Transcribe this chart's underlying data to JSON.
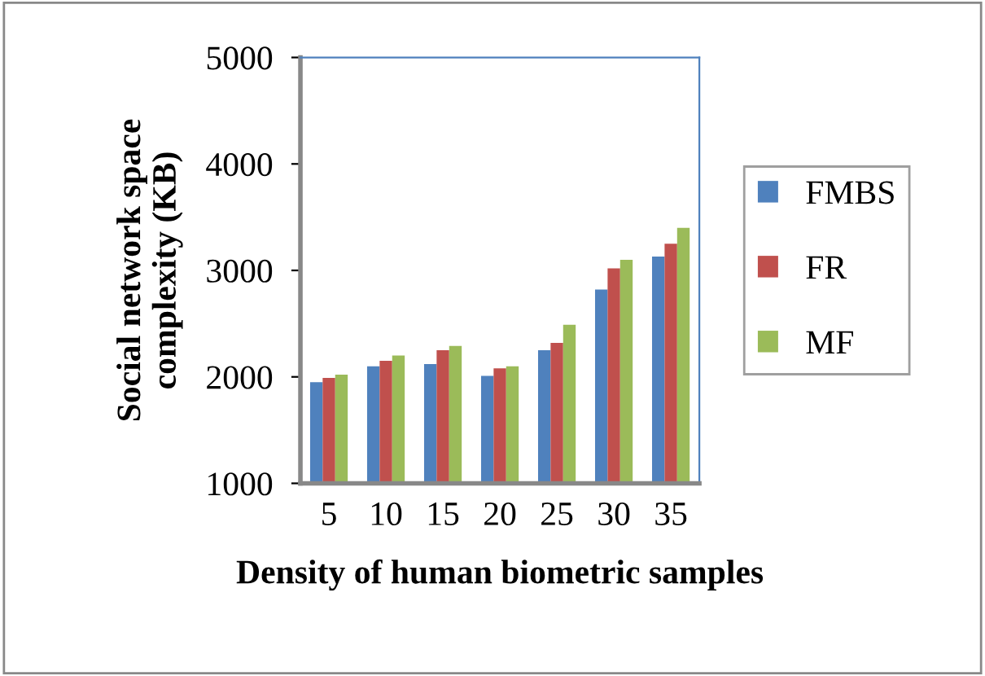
{
  "chart_data": {
    "type": "bar",
    "xlabel": "Density of human biometric samples",
    "ylabel": "Social network space\ncomplexity (KB)",
    "categories": [
      "5",
      "10",
      "15",
      "20",
      "25",
      "30",
      "35"
    ],
    "series": [
      {
        "name": "FMBS",
        "color": "#4f81bd",
        "values": [
          1950,
          2100,
          2120,
          2010,
          2250,
          2820,
          3130
        ]
      },
      {
        "name": "FR",
        "color": "#c0504d",
        "values": [
          1990,
          2150,
          2250,
          2080,
          2320,
          3020,
          3250
        ]
      },
      {
        "name": "MF",
        "color": "#9bbb59",
        "values": [
          2020,
          2200,
          2290,
          2100,
          2490,
          3100,
          3400
        ]
      }
    ],
    "ylim": [
      1000,
      5000
    ],
    "yticks": [
      1000,
      2000,
      3000,
      4000,
      5000
    ],
    "grid": false,
    "legend": "right"
  }
}
